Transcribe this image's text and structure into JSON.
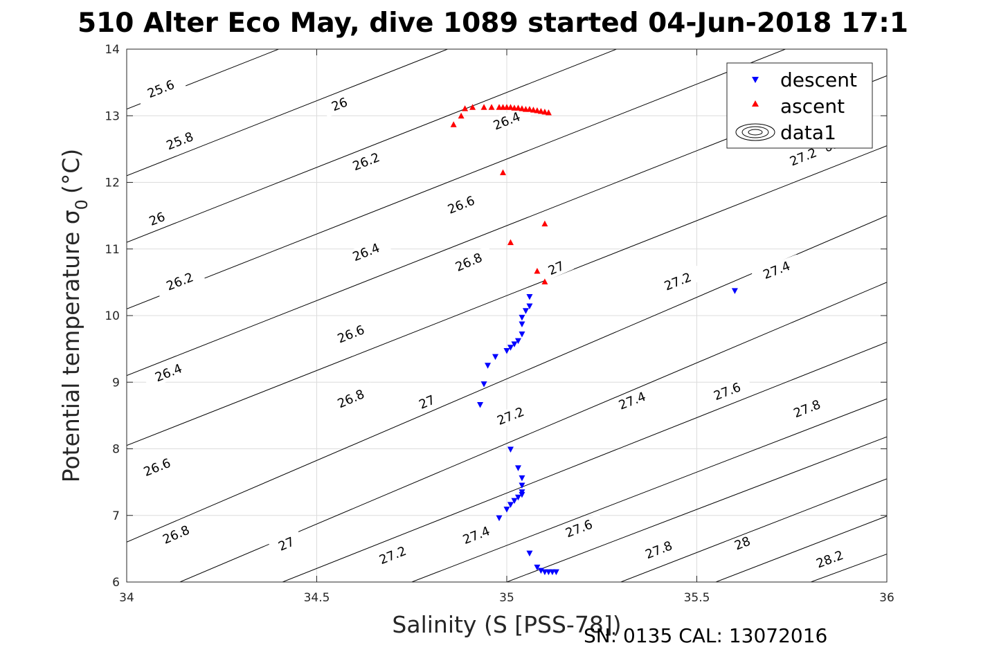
{
  "chart_data": {
    "type": "scatter",
    "title": "510 Alter Eco May, dive 1089 started 04-Jun-2018 17:1",
    "xlabel": "Salinity (S [PSS-78])",
    "ylabel_main": "Potential temperature σ",
    "ylabel_sub": "0",
    "ylabel_unit": "(°C)",
    "xlim": [
      34,
      36
    ],
    "ylim": [
      6,
      14
    ],
    "xticks": [
      34,
      34.5,
      35,
      35.5,
      36
    ],
    "xtick_labels": [
      "34",
      "34.5",
      "35",
      "35.5",
      "36"
    ],
    "yticks": [
      6,
      7,
      8,
      9,
      10,
      11,
      12,
      13,
      14
    ],
    "ytick_labels": [
      "6",
      "7",
      "8",
      "9",
      "10",
      "11",
      "12",
      "13",
      "14"
    ],
    "grid": true,
    "legend_position": "top-right",
    "legend": [
      "descent",
      "ascent",
      "data1"
    ],
    "footer": "SN: 0135  CAL: 13072016",
    "colors": {
      "descent": "#0000ff",
      "ascent": "#ff0000",
      "contour": "#000000",
      "grid": "#dcdcdc"
    },
    "series": [
      {
        "name": "descent",
        "marker": "triangle-down",
        "points": [
          [
            35.6,
            10.37
          ],
          [
            35.06,
            10.28
          ],
          [
            35.06,
            10.14
          ],
          [
            35.05,
            10.07
          ],
          [
            35.04,
            9.97
          ],
          [
            35.04,
            9.87
          ],
          [
            35.04,
            9.72
          ],
          [
            35.03,
            9.62
          ],
          [
            35.02,
            9.57
          ],
          [
            35.01,
            9.52
          ],
          [
            35.0,
            9.47
          ],
          [
            34.97,
            9.38
          ],
          [
            34.95,
            9.25
          ],
          [
            34.94,
            8.97
          ],
          [
            34.93,
            8.66
          ],
          [
            35.01,
            7.99
          ],
          [
            35.03,
            7.71
          ],
          [
            35.04,
            7.56
          ],
          [
            35.04,
            7.45
          ],
          [
            35.04,
            7.35
          ],
          [
            35.04,
            7.31
          ],
          [
            35.03,
            7.27
          ],
          [
            35.02,
            7.22
          ],
          [
            35.01,
            7.16
          ],
          [
            35.0,
            7.09
          ],
          [
            34.98,
            6.96
          ],
          [
            35.06,
            6.43
          ],
          [
            35.08,
            6.22
          ],
          [
            35.09,
            6.17
          ],
          [
            35.1,
            6.15
          ],
          [
            35.11,
            6.15
          ],
          [
            35.12,
            6.15
          ],
          [
            35.13,
            6.15
          ]
        ]
      },
      {
        "name": "ascent",
        "marker": "triangle-up",
        "points": [
          [
            34.86,
            12.87
          ],
          [
            34.88,
            13.0
          ],
          [
            34.89,
            13.11
          ],
          [
            34.91,
            13.13
          ],
          [
            34.94,
            13.13
          ],
          [
            34.96,
            13.13
          ],
          [
            34.98,
            13.13
          ],
          [
            34.99,
            13.13
          ],
          [
            35.0,
            13.13
          ],
          [
            35.01,
            13.13
          ],
          [
            35.02,
            13.12
          ],
          [
            35.03,
            13.12
          ],
          [
            35.04,
            13.11
          ],
          [
            35.05,
            13.1
          ],
          [
            35.06,
            13.1
          ],
          [
            35.07,
            13.09
          ],
          [
            35.08,
            13.08
          ],
          [
            35.09,
            13.07
          ],
          [
            35.1,
            13.06
          ],
          [
            35.11,
            13.05
          ],
          [
            34.99,
            12.15
          ],
          [
            35.1,
            11.38
          ],
          [
            35.01,
            11.1
          ],
          [
            35.08,
            10.67
          ],
          [
            35.1,
            10.51
          ]
        ]
      }
    ],
    "contours": [
      {
        "level": "25.6",
        "points": [
          [
            34,
            13.1
          ],
          [
            36,
            17.6
          ]
        ],
        "labels": [
          [
            34.09,
            13.4
          ]
        ]
      },
      {
        "level": "25.8",
        "points": [
          [
            34,
            12.1
          ],
          [
            36,
            16.6
          ]
        ],
        "labels": [
          [
            34.14,
            12.62
          ]
        ]
      },
      {
        "level": "26",
        "points": [
          [
            34,
            11.1
          ],
          [
            36,
            15.6
          ]
        ],
        "labels": [
          [
            34.56,
            13.17
          ],
          [
            34.08,
            11.45
          ]
        ]
      },
      {
        "level": "26.2",
        "points": [
          [
            34,
            10.1
          ],
          [
            36,
            14.6
          ]
        ],
        "labels": [
          [
            34.63,
            12.31
          ],
          [
            34.14,
            10.51
          ]
        ]
      },
      {
        "level": "26.4",
        "points": [
          [
            34,
            9.1
          ],
          [
            36,
            13.6
          ]
        ],
        "labels": [
          [
            35.0,
            12.92
          ],
          [
            34.63,
            10.95
          ],
          [
            34.11,
            9.14
          ]
        ]
      },
      {
        "level": "26.6",
        "points": [
          [
            34,
            8.05
          ],
          [
            36,
            12.55
          ]
        ],
        "labels": [
          [
            35.62,
            13.39
          ],
          [
            34.88,
            11.66
          ],
          [
            34.59,
            9.72
          ],
          [
            34.08,
            7.72
          ]
        ]
      },
      {
        "level": "26.8",
        "points": [
          [
            34,
            6.6
          ],
          [
            36,
            11.5
          ]
        ],
        "labels": [
          [
            35.85,
            12.54
          ],
          [
            34.9,
            10.8
          ],
          [
            34.59,
            8.75
          ],
          [
            34.13,
            6.71
          ]
        ]
      },
      {
        "level": "27",
        "points": [
          [
            34.14,
            6.0
          ],
          [
            36,
            10.5
          ]
        ],
        "labels": [
          [
            35.13,
            10.71
          ],
          [
            34.79,
            8.7
          ],
          [
            34.42,
            6.57
          ]
        ]
      },
      {
        "level": "27.2",
        "points": [
          [
            34.41,
            6.0
          ],
          [
            36,
            9.6
          ]
        ],
        "labels": [
          [
            35.78,
            12.38
          ],
          [
            35.45,
            10.51
          ],
          [
            35.01,
            8.49
          ],
          [
            34.7,
            6.4
          ]
        ]
      },
      {
        "level": "27.4",
        "points": [
          [
            34.75,
            6.0
          ],
          [
            36,
            8.75
          ]
        ],
        "labels": [
          [
            35.71,
            10.68
          ],
          [
            35.33,
            8.72
          ],
          [
            34.92,
            6.7
          ]
        ]
      },
      {
        "level": "27.6",
        "points": [
          [
            35.0,
            6.0
          ],
          [
            36,
            8.18
          ]
        ],
        "labels": [
          [
            35.58,
            8.86
          ],
          [
            35.19,
            6.8
          ]
        ]
      },
      {
        "level": "27.8",
        "points": [
          [
            35.3,
            6.0
          ],
          [
            36,
            7.55
          ]
        ],
        "labels": [
          [
            35.79,
            8.6
          ],
          [
            35.4,
            6.48
          ]
        ]
      },
      {
        "level": "28",
        "points": [
          [
            35.55,
            6.0
          ],
          [
            36,
            6.99
          ]
        ],
        "labels": [
          [
            35.62,
            6.58
          ]
        ]
      },
      {
        "level": "28.2",
        "points": [
          [
            35.8,
            6.0
          ],
          [
            36,
            6.42
          ]
        ],
        "labels": [
          [
            35.85,
            6.34
          ]
        ]
      }
    ]
  }
}
